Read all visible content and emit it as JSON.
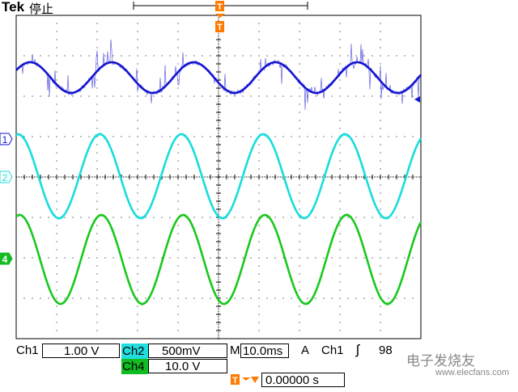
{
  "header": {
    "brand": "Tek",
    "status": "停止"
  },
  "channels": {
    "ch1": {
      "label": "Ch1",
      "scale": "1.00 V",
      "marker": "1",
      "color": "#1414d2"
    },
    "ch2": {
      "label": "Ch2",
      "scale": "500mV",
      "marker": "2",
      "color": "#19dcdc"
    },
    "ch4": {
      "label": "Ch4",
      "scale": "10.0 V",
      "marker": "4",
      "color": "#19c81e"
    }
  },
  "timebase": {
    "label": "M",
    "value": "10.0ms"
  },
  "trigger": {
    "mode": "A",
    "source": "Ch1",
    "slope_symbol": "ʃ",
    "level": "98",
    "marker": "T",
    "position": "0.00000 s"
  },
  "watermark": {
    "text": "电子发烧友",
    "sub": "www.elecfans.com"
  },
  "colors": {
    "grid": "#000000",
    "trigger": "#ff7a00",
    "screen_bg": "#ffffff"
  }
}
